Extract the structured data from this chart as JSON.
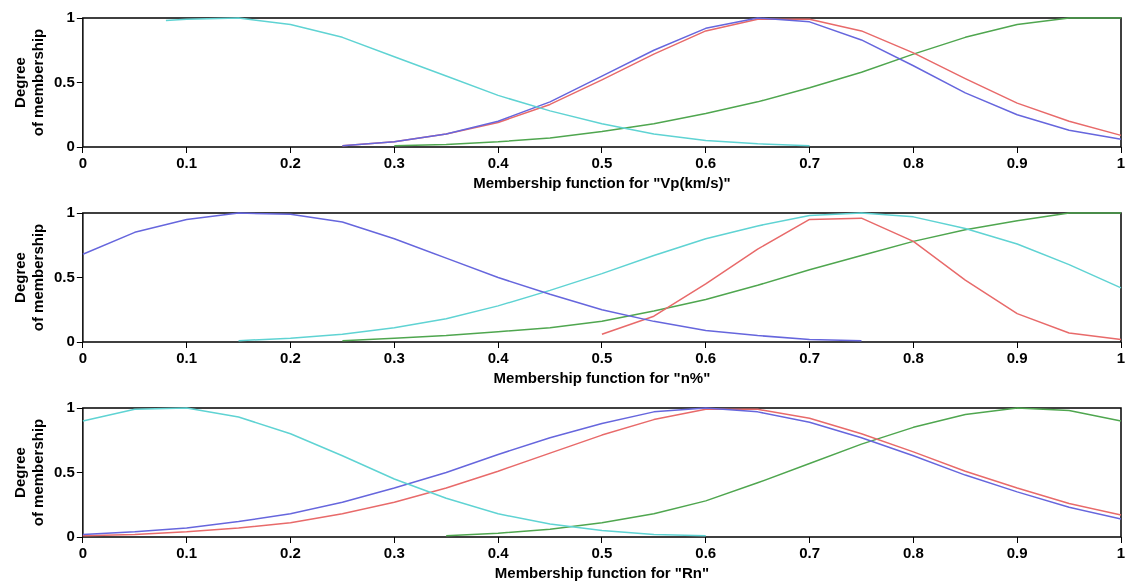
{
  "chart_data": [
    {
      "type": "line",
      "xlabel": "Membership function for \"Vp(km/s)\"",
      "ylabel": "Degree of membership",
      "x": [
        0.25,
        0.3,
        0.35,
        0.4,
        0.45,
        0.5,
        0.55,
        0.6,
        0.65,
        0.7,
        0.75,
        0.8,
        0.85,
        0.9,
        0.95,
        1
      ],
      "xlim": [
        0,
        1
      ],
      "xticks": [
        0,
        0.1,
        0.2,
        0.3,
        0.4,
        0.5,
        0.6,
        0.7,
        0.8,
        0.9,
        1
      ],
      "ylim": [
        0,
        1
      ],
      "yticks": [
        0,
        0.5,
        1
      ],
      "grid": false,
      "legend": false,
      "marker": "none",
      "line_style": "solid",
      "series": [
        {
          "color": "#5fd3d3",
          "x": [
            0.08,
            0.1,
            0.15,
            0.2,
            0.25,
            0.3,
            0.35,
            0.4,
            0.45,
            0.5,
            0.55,
            0.6,
            0.65,
            0.7
          ],
          "values": [
            0.98,
            0.99,
            1,
            0.95,
            0.85,
            0.7,
            0.55,
            0.4,
            0.28,
            0.18,
            0.1,
            0.05,
            0.025,
            0.01
          ]
        },
        {
          "color": "#6666dd",
          "values": [
            0.01,
            0.04,
            0.1,
            0.2,
            0.35,
            0.55,
            0.75,
            0.92,
            1,
            0.97,
            0.83,
            0.63,
            0.42,
            0.25,
            0.13,
            0.06
          ]
        },
        {
          "color": "#e86a6a",
          "values": [
            0.01,
            0.04,
            0.1,
            0.19,
            0.33,
            0.52,
            0.72,
            0.9,
            0.99,
            0.99,
            0.9,
            0.73,
            0.53,
            0.34,
            0.2,
            0.09
          ]
        },
        {
          "color": "#4fa64f",
          "values": [
            null,
            0.01,
            0.02,
            0.04,
            0.07,
            0.12,
            0.18,
            0.26,
            0.35,
            0.46,
            0.58,
            0.72,
            0.85,
            0.95,
            1,
            1
          ]
        }
      ]
    },
    {
      "type": "line",
      "xlabel": "Membership function for \"n%\"",
      "ylabel": "Degree of membership",
      "x": [
        0,
        0.05,
        0.1,
        0.15,
        0.2,
        0.25,
        0.3,
        0.35,
        0.4,
        0.45,
        0.5,
        0.55,
        0.6,
        0.65,
        0.7,
        0.75,
        0.8,
        0.85,
        0.9,
        0.95,
        1
      ],
      "xlim": [
        0,
        1
      ],
      "xticks": [
        0,
        0.1,
        0.2,
        0.3,
        0.4,
        0.5,
        0.6,
        0.7,
        0.8,
        0.9,
        1
      ],
      "ylim": [
        0,
        1
      ],
      "yticks": [
        0,
        0.5,
        1
      ],
      "grid": false,
      "legend": false,
      "marker": "none",
      "line_style": "solid",
      "series": [
        {
          "color": "#6666dd",
          "values": [
            0.68,
            0.85,
            0.95,
            1,
            0.99,
            0.93,
            0.8,
            0.65,
            0.5,
            0.37,
            0.25,
            0.16,
            0.09,
            0.05,
            0.02,
            0.01,
            null,
            null,
            null,
            null,
            null
          ]
        },
        {
          "color": "#5fd3d3",
          "values": [
            null,
            null,
            null,
            0.01,
            0.03,
            0.06,
            0.11,
            0.18,
            0.28,
            0.4,
            0.53,
            0.67,
            0.8,
            0.9,
            0.98,
            1,
            0.97,
            0.88,
            0.76,
            0.6,
            0.42
          ]
        },
        {
          "color": "#e86a6a",
          "values": [
            null,
            null,
            null,
            null,
            null,
            null,
            null,
            null,
            null,
            null,
            0.06,
            0.2,
            0.45,
            0.72,
            0.95,
            0.96,
            0.78,
            0.48,
            0.22,
            0.07,
            0.02
          ]
        },
        {
          "color": "#4fa64f",
          "values": [
            null,
            null,
            null,
            null,
            null,
            0.01,
            0.03,
            0.05,
            0.08,
            0.11,
            0.16,
            0.24,
            0.33,
            0.44,
            0.56,
            0.67,
            0.78,
            0.87,
            0.94,
            1,
            1
          ]
        }
      ]
    },
    {
      "type": "line",
      "xlabel": "Membership function for \"Rn\"",
      "ylabel": "Degree of membership",
      "x": [
        0,
        0.05,
        0.1,
        0.15,
        0.2,
        0.25,
        0.3,
        0.35,
        0.4,
        0.45,
        0.5,
        0.55,
        0.6,
        0.65,
        0.7,
        0.75,
        0.8,
        0.85,
        0.9,
        0.95,
        1
      ],
      "xlim": [
        0,
        1
      ],
      "xticks": [
        0,
        0.1,
        0.2,
        0.3,
        0.4,
        0.5,
        0.6,
        0.7,
        0.8,
        0.9,
        1
      ],
      "ylim": [
        0,
        1
      ],
      "yticks": [
        0,
        0.5,
        1
      ],
      "grid": false,
      "legend": false,
      "marker": "none",
      "line_style": "solid",
      "series": [
        {
          "color": "#5fd3d3",
          "values": [
            0.9,
            0.99,
            1,
            0.93,
            0.8,
            0.63,
            0.45,
            0.3,
            0.18,
            0.1,
            0.05,
            0.02,
            0.01,
            null,
            null,
            null,
            null,
            null,
            null,
            null,
            null
          ]
        },
        {
          "color": "#6666dd",
          "values": [
            0.02,
            0.04,
            0.07,
            0.12,
            0.18,
            0.27,
            0.38,
            0.5,
            0.64,
            0.77,
            0.88,
            0.97,
            1,
            0.97,
            0.89,
            0.77,
            0.63,
            0.48,
            0.35,
            0.23,
            0.14
          ]
        },
        {
          "color": "#e86a6a",
          "values": [
            0.01,
            0.02,
            0.04,
            0.07,
            0.11,
            0.18,
            0.27,
            0.38,
            0.51,
            0.65,
            0.79,
            0.91,
            0.99,
            0.99,
            0.92,
            0.8,
            0.66,
            0.51,
            0.38,
            0.26,
            0.17
          ]
        },
        {
          "color": "#4fa64f",
          "values": [
            null,
            null,
            null,
            null,
            null,
            null,
            null,
            0.01,
            0.03,
            0.06,
            0.11,
            0.18,
            0.28,
            0.42,
            0.57,
            0.72,
            0.85,
            0.95,
            1,
            0.98,
            0.9
          ]
        }
      ]
    }
  ]
}
